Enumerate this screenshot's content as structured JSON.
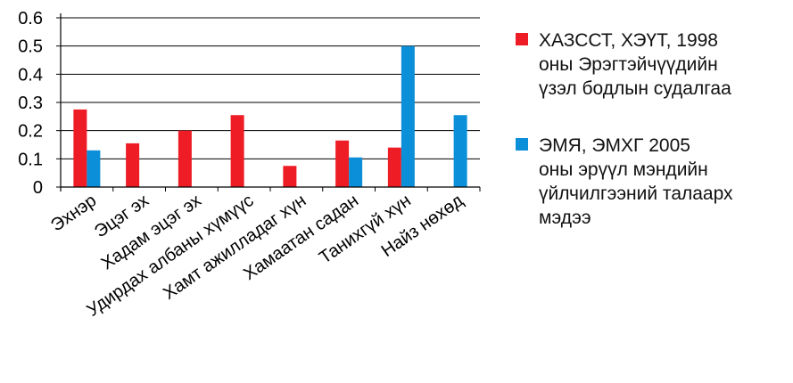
{
  "chart_data": {
    "type": "bar",
    "categories": [
      "Эхнэр",
      "Эцэг эх",
      "Хадам эцэг эх",
      "Удирдах албаны хүмүүс",
      "Хамт ажилладаг хүн",
      "Хамаатан садан",
      "Танихгүй хүн",
      "Найз нөхөд"
    ],
    "series": [
      {
        "name": "ХАЗССТ, ХЭҮТ, 1998\nоны Эрэгтэйчүүдийн\nүзэл бодлын судалгаа",
        "color": "#ee1c25",
        "values": [
          0.275,
          0.155,
          0.2,
          0.255,
          0.075,
          0.165,
          0.14,
          null
        ]
      },
      {
        "name": "ЭМЯ, ЭМХГ  2005\nоны эрүүл мэндийн\nүйлчилгээний талаарх\nмэдээ",
        "color": "#0b8fd8",
        "values": [
          0.13,
          null,
          null,
          null,
          null,
          0.105,
          0.5,
          0.255
        ]
      }
    ],
    "yticks": [
      "0",
      "0.1",
      "0.2",
      "0.3",
      "0.4",
      "0.5",
      "0.6"
    ],
    "ylim": [
      0,
      0.6
    ],
    "grid": true,
    "legend": "right"
  }
}
